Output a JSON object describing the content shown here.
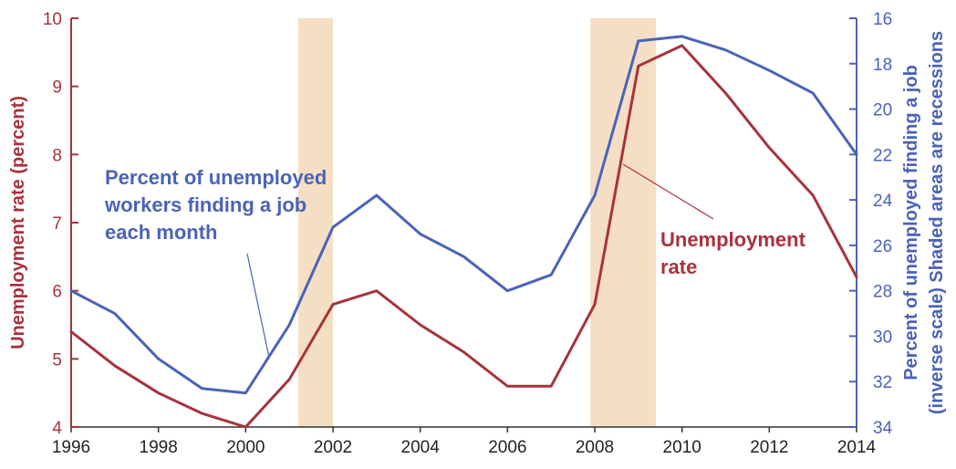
{
  "chart_data": {
    "type": "line",
    "x": [
      1996,
      1997,
      1998,
      1999,
      2000,
      2001,
      2002,
      2003,
      2004,
      2005,
      2006,
      2007,
      2008,
      2009,
      2010,
      2011,
      2012,
      2013,
      2014
    ],
    "xticks": [
      "1996",
      "1998",
      "2000",
      "2002",
      "2004",
      "2006",
      "2008",
      "2010",
      "2012",
      "2014"
    ],
    "xlim": [
      1996,
      2014
    ],
    "series": [
      {
        "name": "Unemployment rate",
        "axis": "left",
        "color": "#a8323c",
        "values": [
          5.4,
          4.9,
          4.5,
          4.2,
          4.0,
          4.7,
          5.8,
          6.0,
          5.5,
          5.1,
          4.6,
          4.6,
          5.8,
          9.3,
          9.6,
          8.9,
          8.1,
          7.4,
          6.2
        ]
      },
      {
        "name": "Percent of unemployed workers finding a job each month",
        "axis": "right",
        "color": "#4a63b8",
        "values": [
          28.0,
          29.0,
          31.0,
          32.3,
          32.5,
          29.5,
          25.2,
          23.8,
          25.5,
          26.5,
          28.0,
          27.3,
          23.8,
          17.0,
          16.8,
          17.4,
          18.3,
          19.3,
          22.0
        ]
      }
    ],
    "left_axis": {
      "label": "Unemployment rate (percent)",
      "ylim": [
        4,
        10
      ],
      "ticks": [
        "4",
        "5",
        "6",
        "7",
        "8",
        "9",
        "10"
      ]
    },
    "right_axis": {
      "label_line1": "Percent of unemployed finding a job",
      "label_line2": "(inverse scale) Shaded areas are recessions",
      "ylim": [
        34,
        16
      ],
      "scale": "inverse",
      "ticks": [
        "16",
        "18",
        "20",
        "22",
        "24",
        "26",
        "28",
        "30",
        "32",
        "34"
      ]
    },
    "recessions": [
      [
        2001.2,
        2002.0
      ],
      [
        2007.9,
        2009.4
      ]
    ],
    "annotations": {
      "blue_label": [
        "Percent of unemployed",
        "workers finding a job",
        "each month"
      ],
      "red_label": [
        "Unemployment",
        "rate"
      ]
    },
    "colors": {
      "left_axis": "#a8323c",
      "right_axis": "#4a63b8",
      "recession_shade": "#f5dfc4"
    },
    "grid": false
  }
}
